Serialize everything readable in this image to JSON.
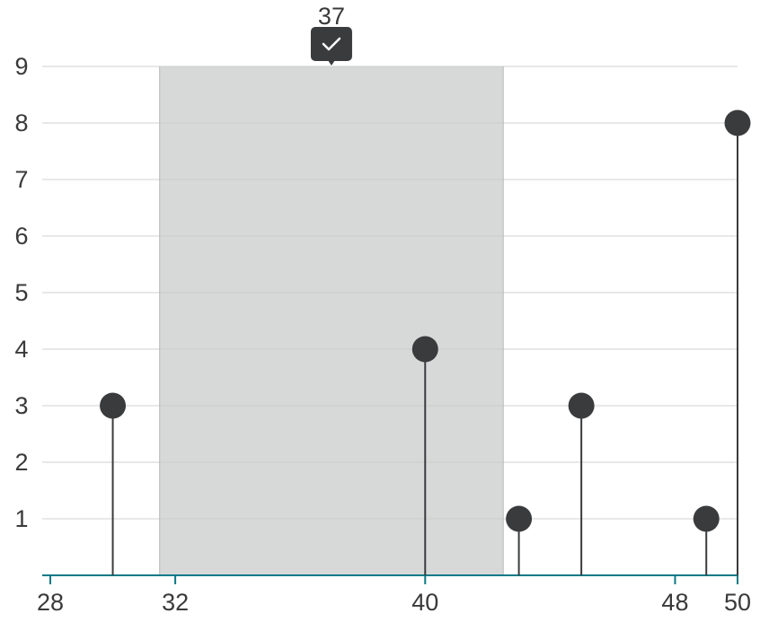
{
  "chart_data": {
    "type": "stem",
    "x": [
      30,
      40,
      43,
      45,
      49,
      50
    ],
    "y": [
      3,
      4,
      1,
      3,
      1,
      8
    ],
    "xlim": [
      28,
      50
    ],
    "ylim": [
      0,
      9
    ],
    "x_ticks": [
      28,
      32,
      40,
      48,
      50
    ],
    "y_ticks": [
      1,
      2,
      3,
      4,
      5,
      6,
      7,
      8,
      9
    ],
    "grid": true,
    "highlight_band": {
      "x_start": 31.5,
      "x_end": 42.5
    },
    "marker": {
      "x": 37,
      "label": "37",
      "icon": "check-icon"
    },
    "colors": {
      "stem": "#3a3b3d",
      "axis": "#0b7a86",
      "band": "#c8caca",
      "grid": "#e0e0e0"
    }
  }
}
